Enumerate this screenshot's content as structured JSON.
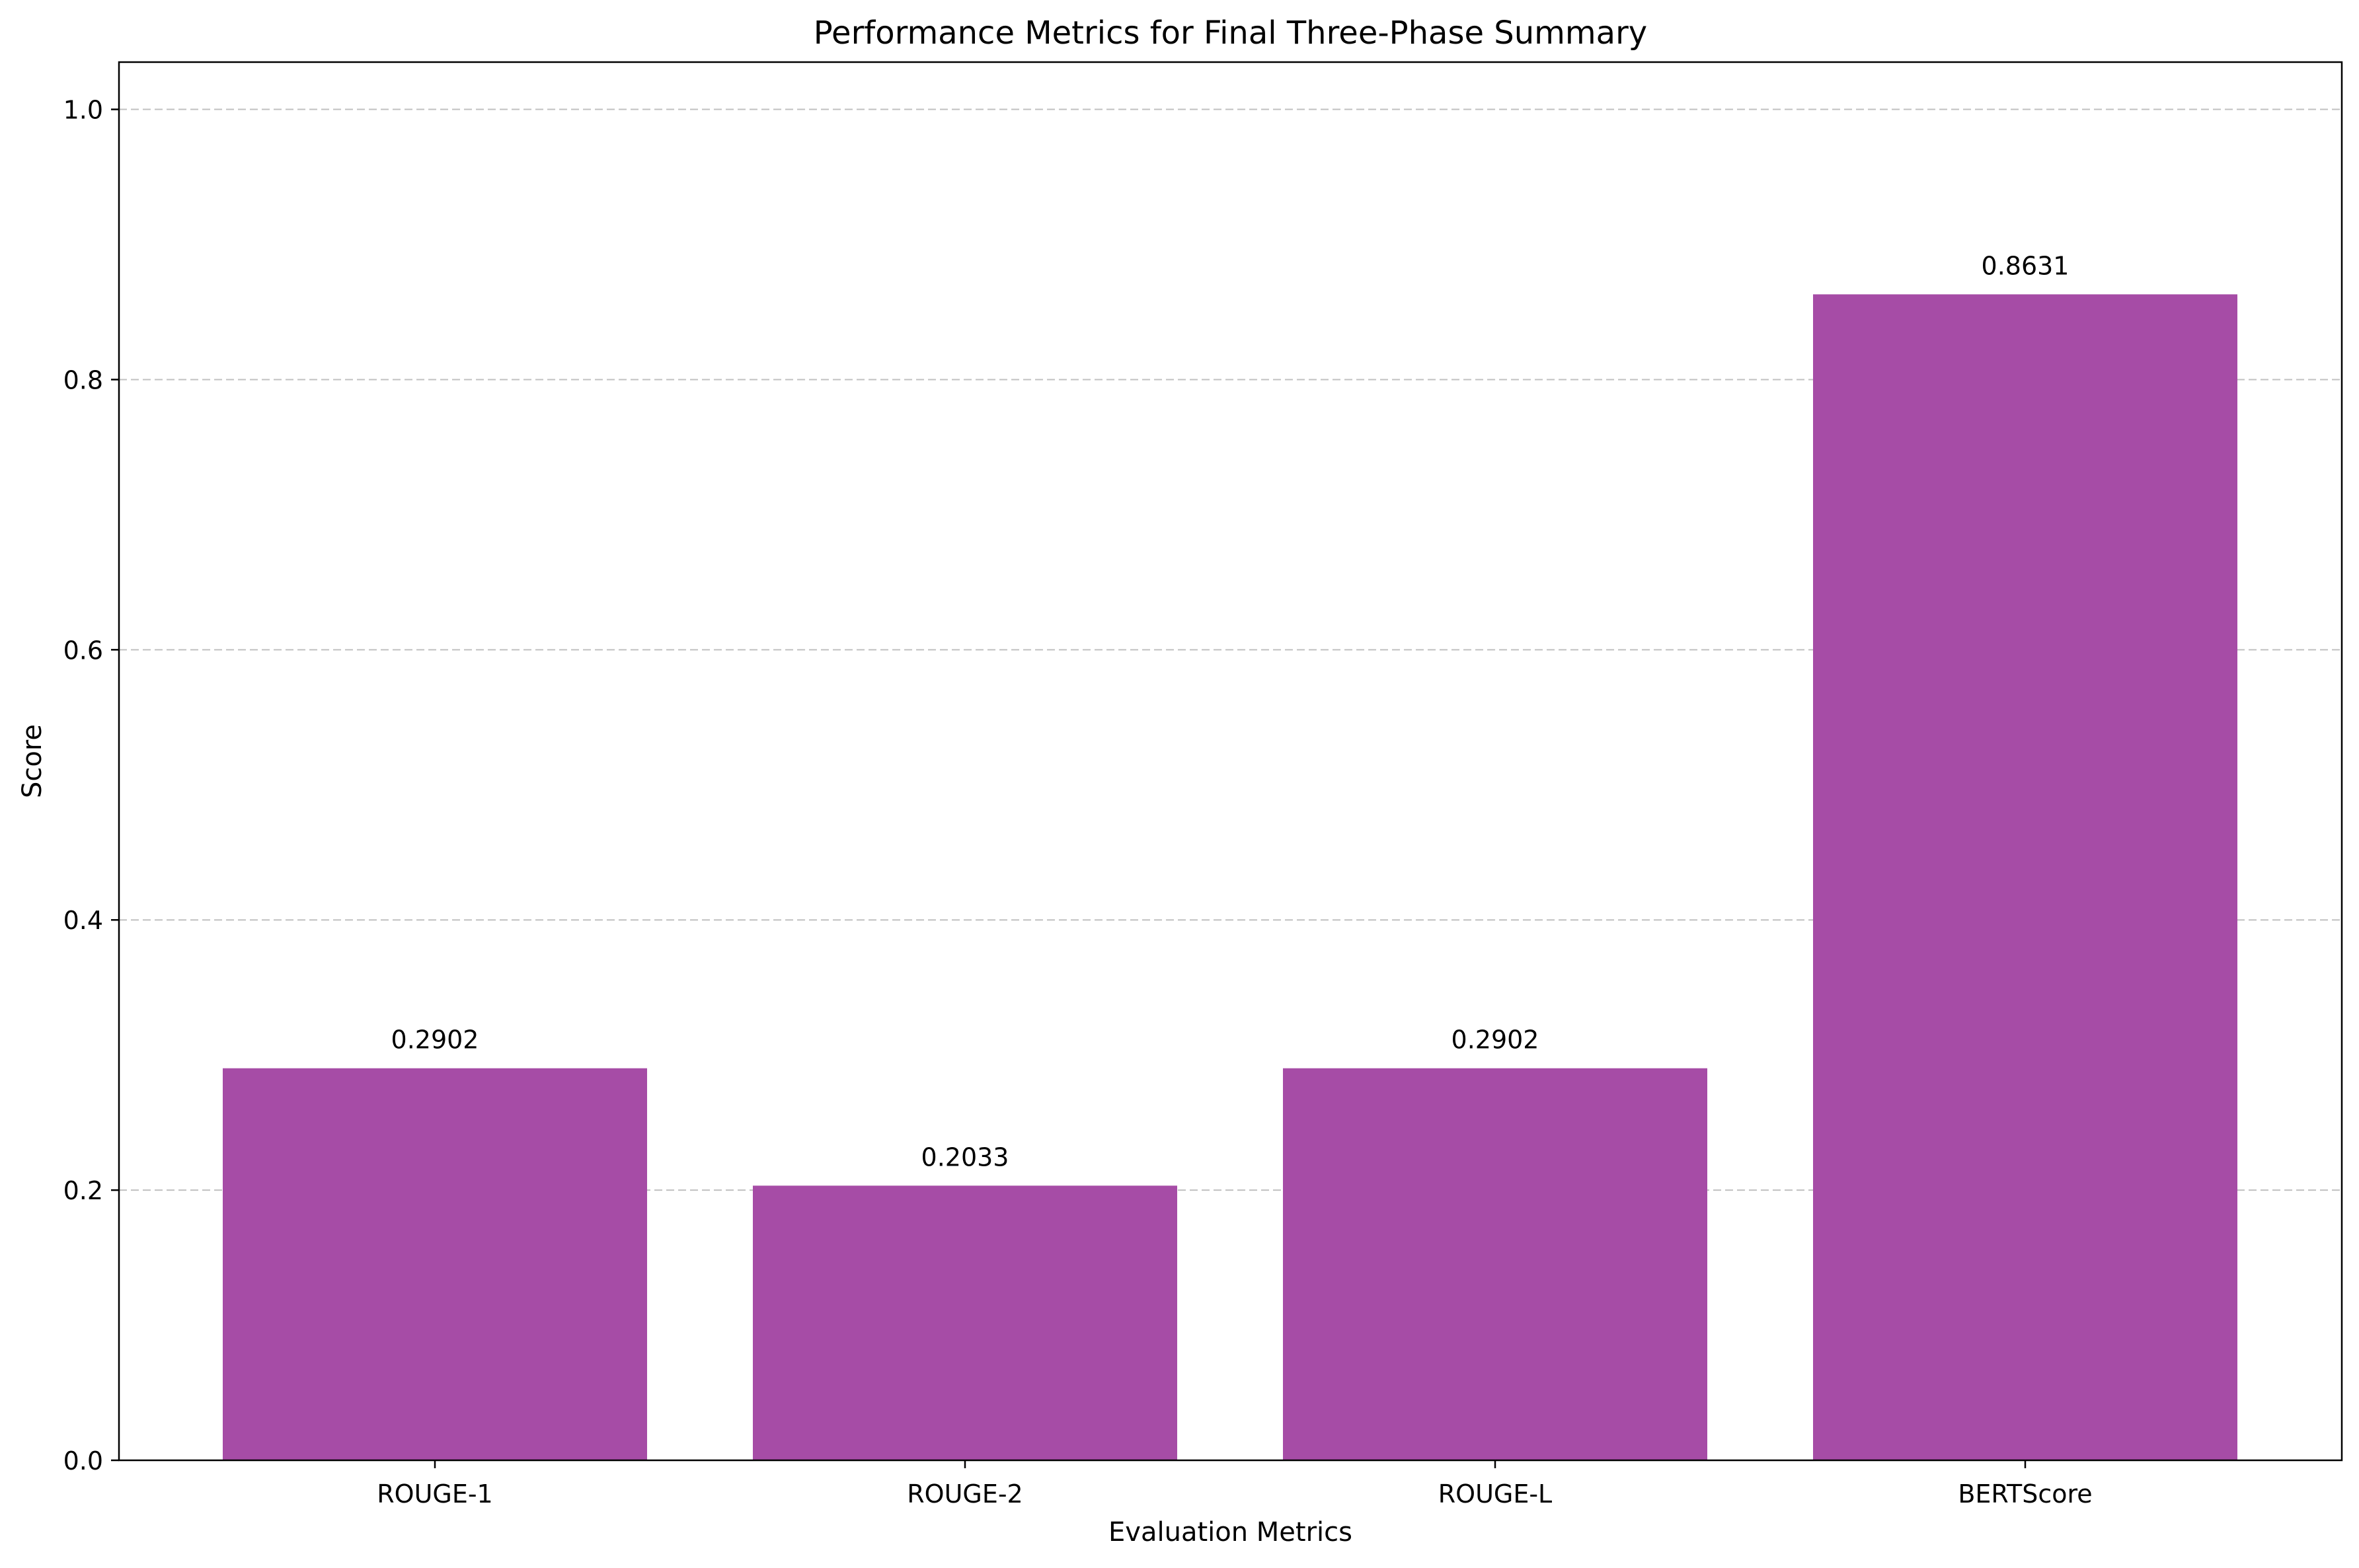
{
  "chart_data": {
    "type": "bar",
    "title": "Performance Metrics for Final Three-Phase Summary",
    "xlabel": "Evaluation Metrics",
    "ylabel": "Score",
    "categories": [
      "ROUGE-1",
      "ROUGE-2",
      "ROUGE-L",
      "BERTScore"
    ],
    "values": [
      0.2902,
      0.2033,
      0.2902,
      0.8631
    ],
    "value_labels": [
      "0.2902",
      "0.2033",
      "0.2902",
      "0.8631"
    ],
    "ylim": [
      0,
      1.035
    ],
    "yticks": [
      0.0,
      0.2,
      0.4,
      0.6,
      0.8,
      1.0
    ],
    "ytick_labels": [
      "0.0",
      "0.2",
      "0.4",
      "0.6",
      "0.8",
      "1.0"
    ],
    "grid": {
      "axis": "y",
      "style": "dashed"
    },
    "bar_color": "#a64ca6",
    "grid_color": "#c0c0c0"
  }
}
